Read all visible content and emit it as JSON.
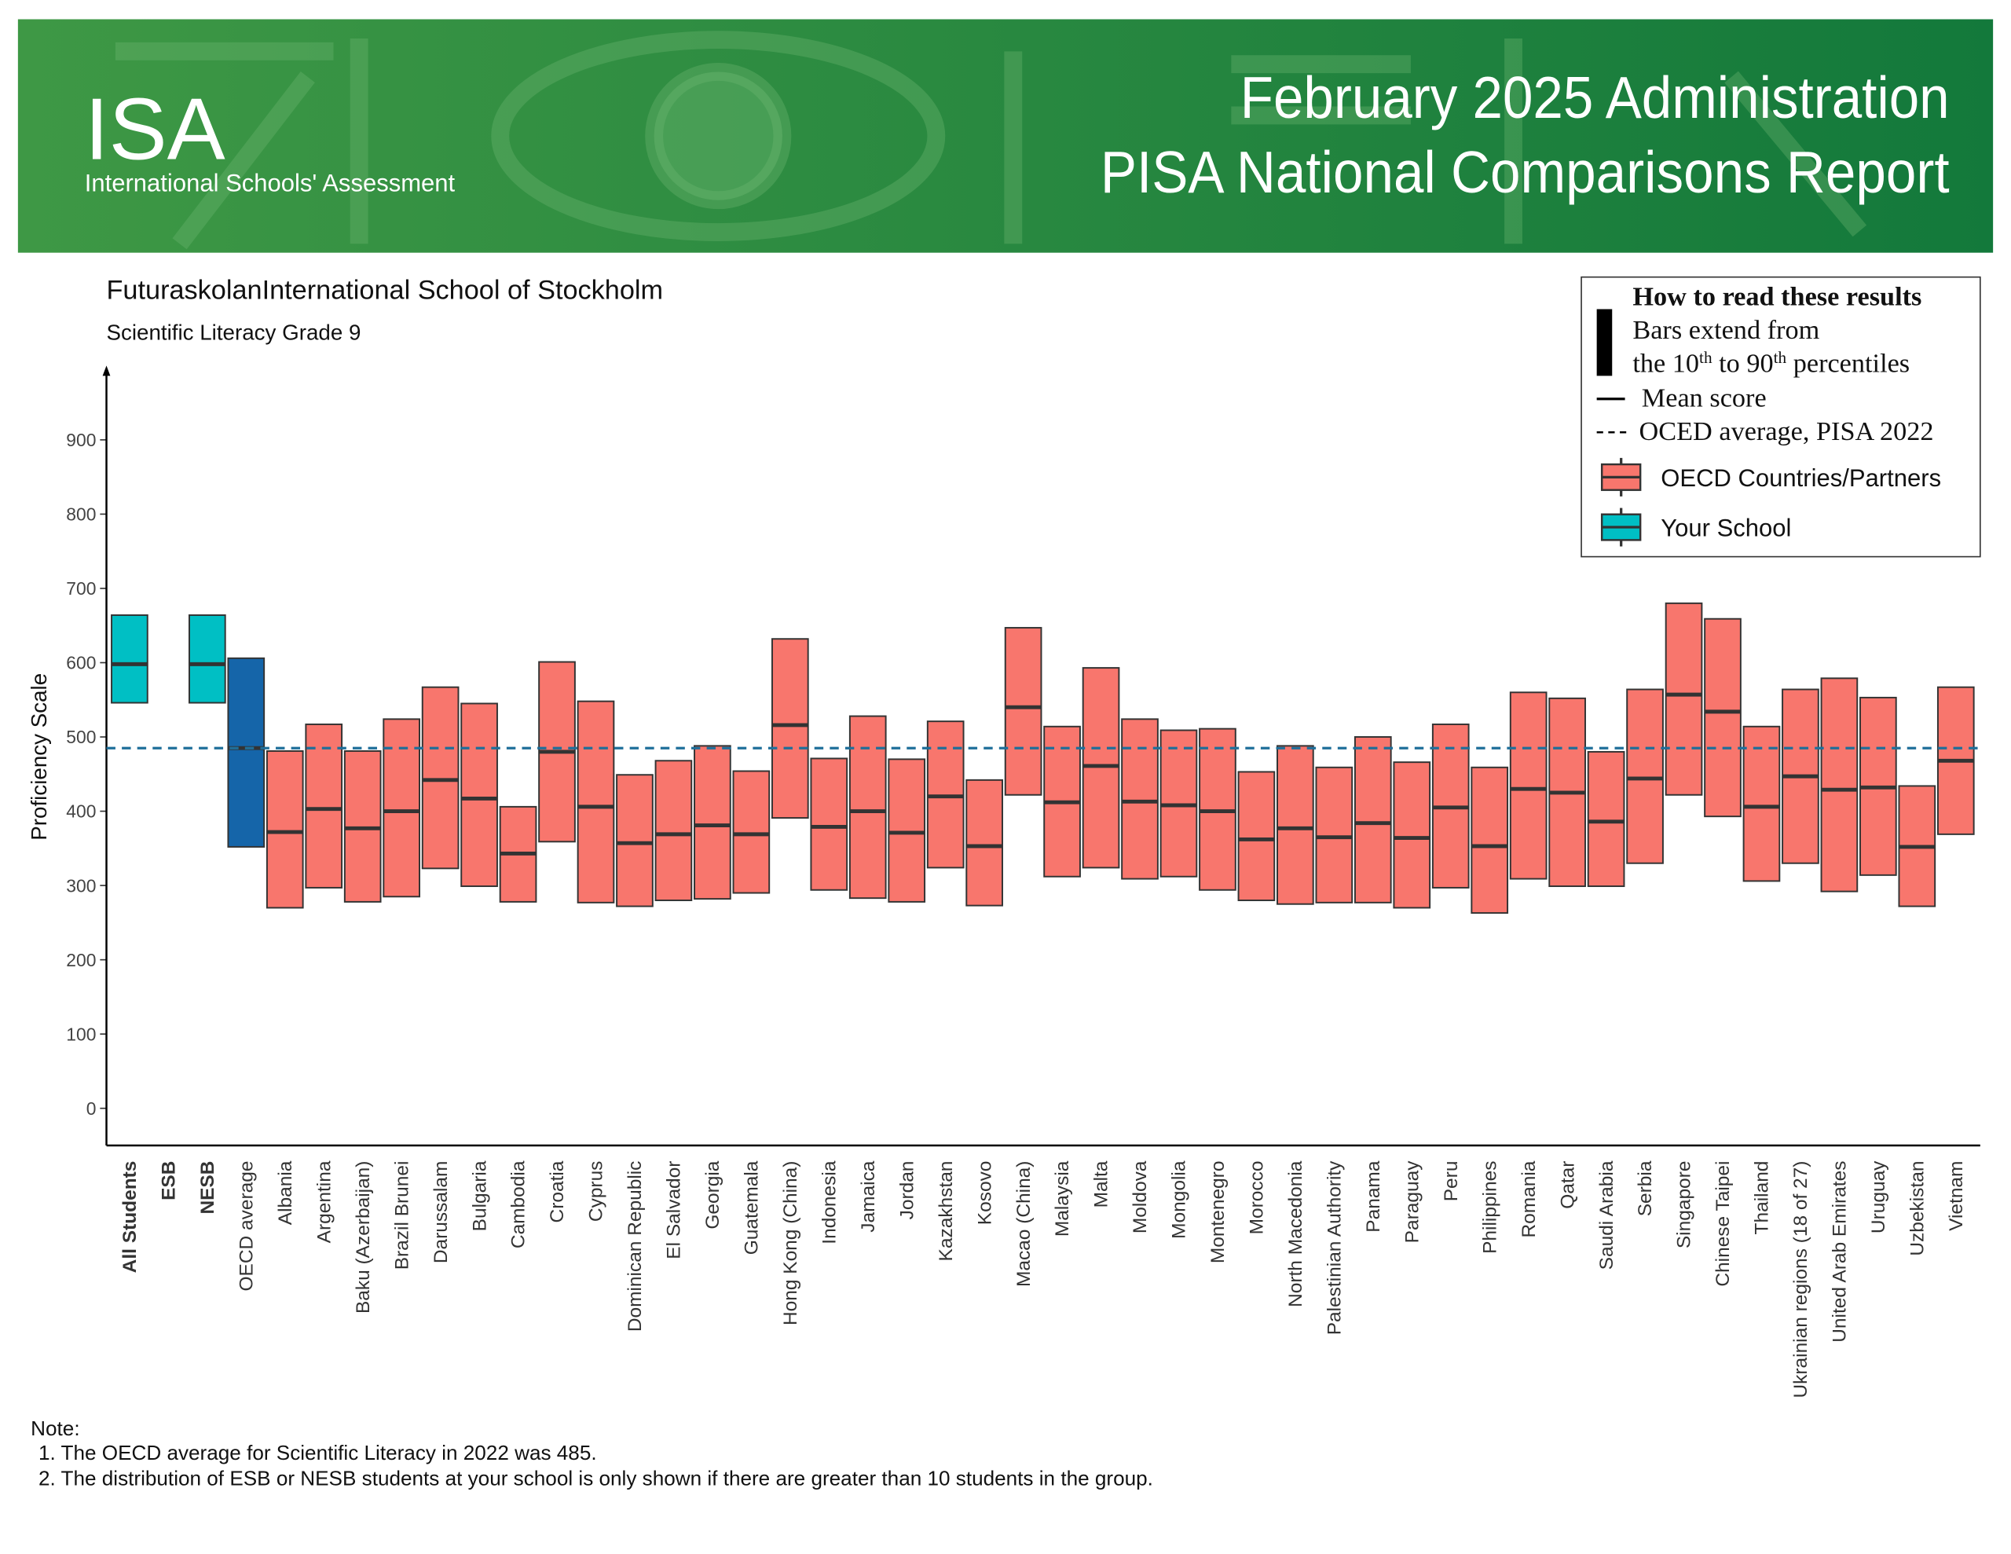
{
  "header": {
    "logo": "ISA",
    "logo_subtitle": "International Schools' Assessment",
    "title_lines": [
      "February 2025 Administration",
      "PISA National Comparisons Report"
    ]
  },
  "chart_data": {
    "type": "range",
    "title": "FuturaskolanInternational School of Stockholm",
    "subtitle": "Scientific Literacy Grade 9",
    "y_label": "Proficiency Scale",
    "categories": [
      "All Students",
      "ESB",
      "NESB",
      "OECD average",
      "Albania",
      "Argentina",
      "Baku (Azerbaijan)",
      "Brazil Brunei",
      "Darussalam",
      "Bulgaria",
      "Cambodia",
      "Croatia",
      "Cyprus",
      "Dominican Republic",
      "El Salvador",
      "Georgia",
      "Guatemala",
      "Hong Kong (China)",
      "Indonesia",
      "Jamaica",
      "Jordan",
      "Kazakhstan",
      "Kosovo",
      "Macao (China)",
      "Malaysia",
      "Malta",
      "Moldova",
      "Mongolia",
      "Montenegro",
      "Morocco",
      "North Macedonia",
      "Palestinian Authority",
      "Panama",
      "Paraguay",
      "Peru",
      "Philippines",
      "Romania",
      "Qatar",
      "Saudi Arabia",
      "Serbia",
      "Singapore",
      "Chinese Taipei",
      "Thailand",
      "Ukrainian regions (18 of 27)",
      "United Arab Emirates",
      "Uruguay",
      "Uzbekistan",
      "Vietnam"
    ],
    "low": [
      546,
      null,
      546,
      352,
      270,
      297,
      278,
      285,
      323,
      299,
      278,
      359,
      277,
      272,
      280,
      282,
      290,
      391,
      294,
      283,
      278,
      324,
      273,
      422,
      312,
      324,
      309,
      312,
      294,
      280,
      275,
      277,
      277,
      270,
      297,
      263,
      309,
      299,
      299,
      330,
      422,
      393,
      306,
      330,
      292,
      314,
      272,
      369
    ],
    "high": [
      664,
      null,
      664,
      606,
      481,
      517,
      481,
      524,
      567,
      545,
      406,
      601,
      548,
      449,
      468,
      488,
      454,
      632,
      471,
      528,
      470,
      521,
      442,
      647,
      514,
      593,
      524,
      509,
      511,
      453,
      488,
      459,
      500,
      466,
      517,
      459,
      560,
      552,
      480,
      564,
      680,
      659,
      514,
      564,
      579,
      553,
      434,
      567
    ],
    "mean": [
      598,
      null,
      598,
      485,
      372,
      403,
      377,
      400,
      442,
      417,
      343,
      480,
      406,
      357,
      369,
      381,
      369,
      516,
      379,
      400,
      371,
      420,
      353,
      540,
      412,
      461,
      413,
      408,
      400,
      362,
      377,
      365,
      384,
      364,
      405,
      353,
      430,
      425,
      386,
      444,
      557,
      534,
      406,
      447,
      429,
      432,
      352,
      468
    ],
    "colors": [
      "#00bfc4",
      "#00bfc4",
      "#00bfc4",
      "#1565a9",
      "#f8766d",
      "#f8766d",
      "#f8766d",
      "#f8766d",
      "#f8766d",
      "#f8766d",
      "#f8766d",
      "#f8766d",
      "#f8766d",
      "#f8766d",
      "#f8766d",
      "#f8766d",
      "#f8766d",
      "#f8766d",
      "#f8766d",
      "#f8766d",
      "#f8766d",
      "#f8766d",
      "#f8766d",
      "#f8766d",
      "#f8766d",
      "#f8766d",
      "#f8766d",
      "#f8766d",
      "#f8766d",
      "#f8766d",
      "#f8766d",
      "#f8766d",
      "#f8766d",
      "#f8766d",
      "#f8766d",
      "#f8766d",
      "#f8766d",
      "#f8766d",
      "#f8766d",
      "#f8766d",
      "#f8766d",
      "#f8766d",
      "#f8766d",
      "#f8766d",
      "#f8766d",
      "#f8766d",
      "#f8766d",
      "#f8766d"
    ],
    "reference_line": 485,
    "ylim": [
      -50,
      1000
    ],
    "yticks": [
      0,
      100,
      200,
      300,
      400,
      500,
      600,
      700,
      800,
      900
    ],
    "legend": {
      "title": "How to read these results",
      "bars_line": "Bars extend from",
      "percentile_parts": [
        "the 10",
        "th",
        " to 90",
        "th",
        " percentiles"
      ],
      "mean_label": "Mean score",
      "reference_label": "OCED average, PISA 2022",
      "items": [
        {
          "name": "OECD Countries/Partners",
          "color": "#f8766d"
        },
        {
          "name": "Your School",
          "color": "#00bfc4"
        }
      ]
    }
  },
  "notes": {
    "heading": "Note:",
    "items": [
      "1. The OECD average for Scientific Literacy in 2022 was 485.",
      "2. The distribution of ESB or NESB students at your school is only shown if there are greater than 10 students in the group."
    ]
  }
}
